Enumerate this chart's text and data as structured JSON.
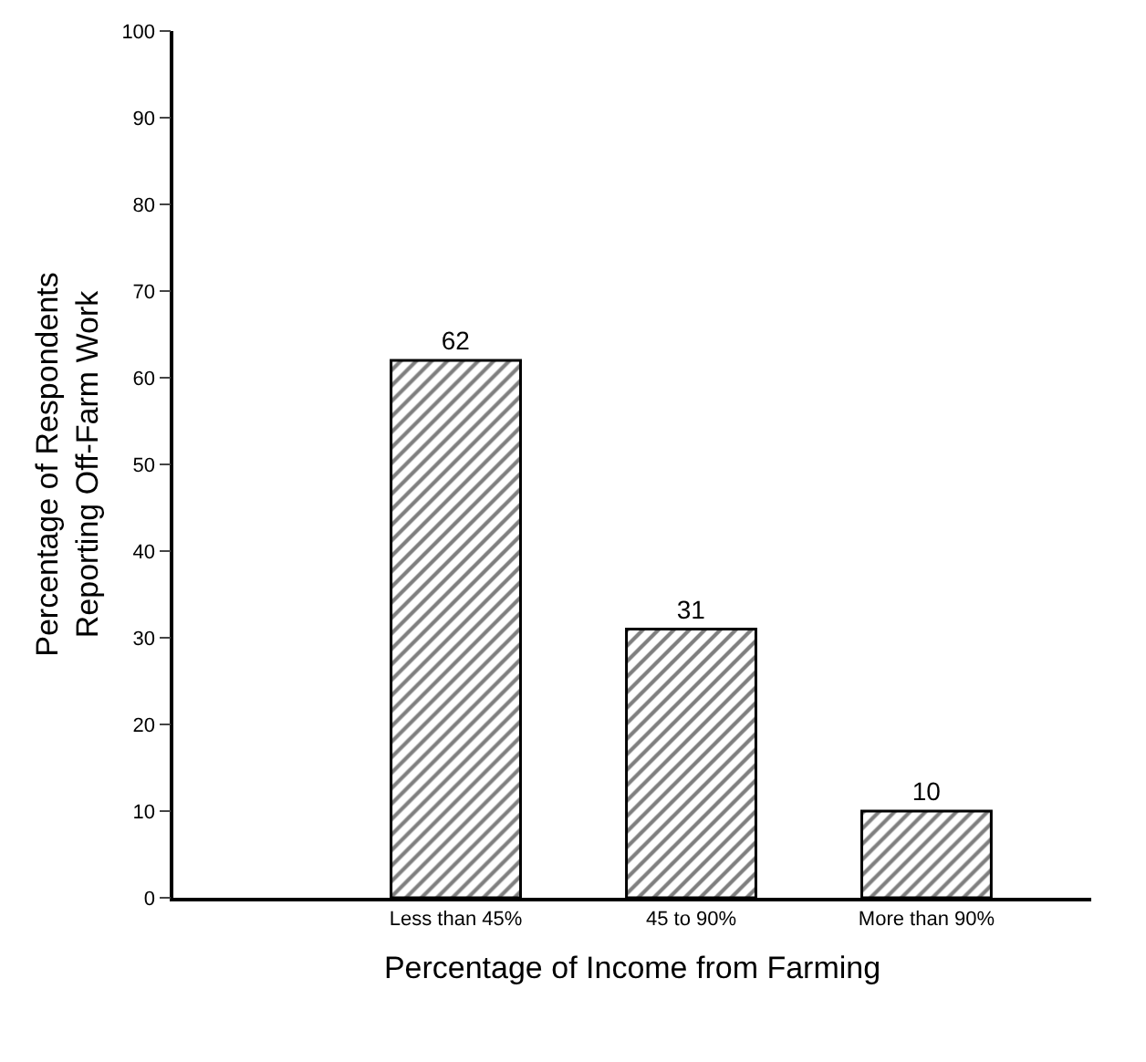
{
  "chart_data": {
    "type": "bar",
    "xlabel": "Percentage of Income from Farming",
    "ylabel": "Percentage of Respondents\nReporting Off-Farm Work",
    "categories": [
      "Less than 45%",
      "45 to 90%",
      "More than 90%"
    ],
    "values": [
      62,
      31,
      10
    ],
    "color": "#000000",
    "ylim": [
      0,
      100
    ],
    "yticks": [
      0,
      10,
      20,
      30,
      40,
      50,
      60,
      70,
      80,
      90,
      100
    ],
    "legend": false,
    "data_labels": true
  }
}
